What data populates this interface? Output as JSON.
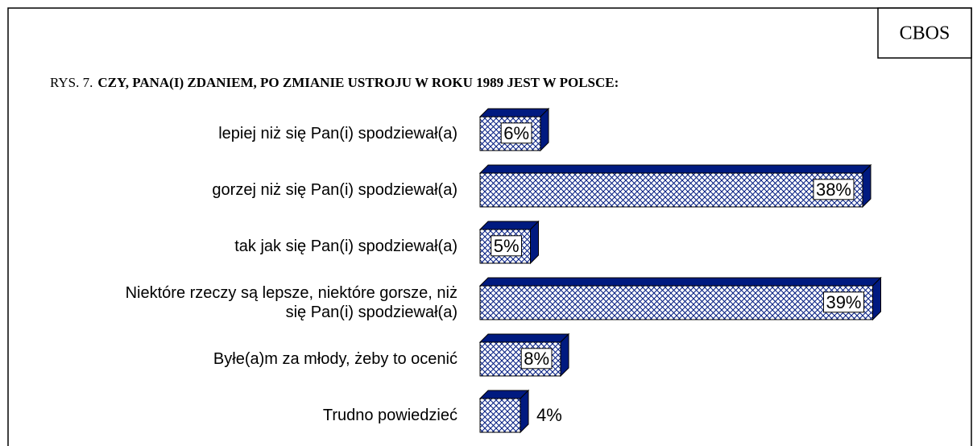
{
  "chart_data": {
    "type": "bar",
    "orientation": "horizontal",
    "source": "CBOS",
    "title_prefix": "RYS. 7.",
    "title": "CZY, PANA(I) ZDANIEM, PO ZMIANIE USTROJU W ROKU 1989 JEST W POLSCE:",
    "categories": [
      "lepiej niż się Pan(i) spodziewał(a)",
      "gorzej niż się Pan(i) spodziewał(a)",
      "tak jak się Pan(i) spodziewał(a)",
      "Niektóre rzeczy są lepsze, niektóre gorsze, niż się Pan(i) spodziewał(a)",
      "Byłe(a)m za młody, żeby to ocenić",
      "Trudno powiedzieć"
    ],
    "values": [
      6,
      38,
      5,
      39,
      8,
      4
    ],
    "value_labels": [
      "6%",
      "38%",
      "5%",
      "39%",
      "8%",
      "4%"
    ],
    "color": "#001a80"
  }
}
